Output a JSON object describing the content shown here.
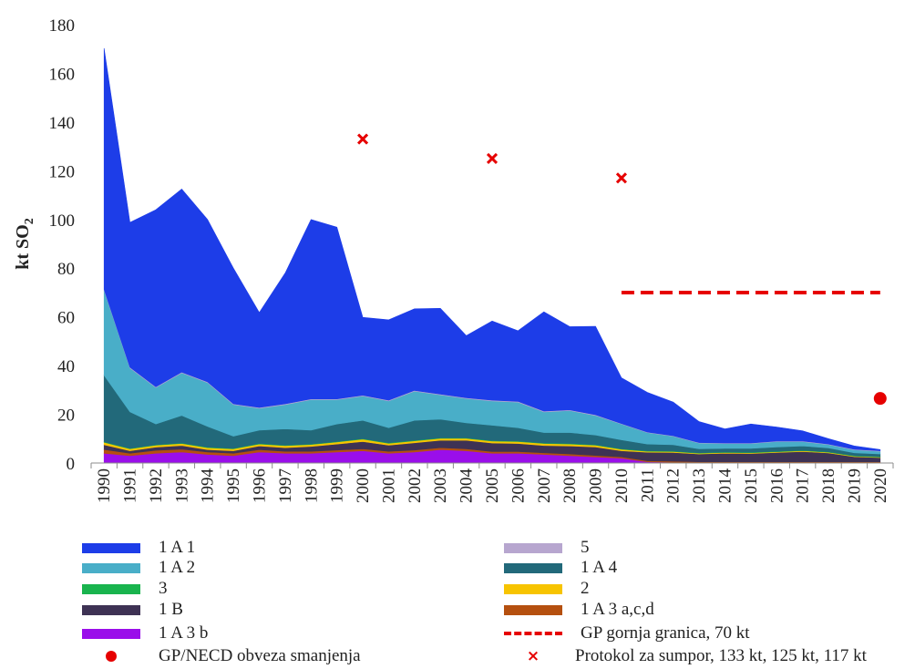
{
  "chart_data": {
    "type": "area",
    "stacked": true,
    "ylabel": "kt SO",
    "ylabel_sub": "2",
    "ylim": [
      0,
      180
    ],
    "yticks": [
      0,
      20,
      40,
      60,
      80,
      100,
      120,
      140,
      160,
      180
    ],
    "x": [
      "1990",
      "1991",
      "1992",
      "1993",
      "1994",
      "1995",
      "1996",
      "1997",
      "1998",
      "1999",
      "2000",
      "2001",
      "2002",
      "2003",
      "2004",
      "2005",
      "2006",
      "2007",
      "2008",
      "2009",
      "2010",
      "2011",
      "2012",
      "2013",
      "2014",
      "2015",
      "2016",
      "2017",
      "2018",
      "2019",
      "2020"
    ],
    "series": [
      {
        "name": "1 A 3 b",
        "color": "#9a0eea",
        "values": [
          4,
          3,
          4,
          4.5,
          3.5,
          3,
          4.5,
          4,
          4,
          4.5,
          5,
          4,
          4.5,
          5.5,
          5,
          4,
          4,
          3.5,
          3,
          2.5,
          2,
          0.5,
          0.3,
          0.2,
          0.2,
          0.2,
          0.2,
          0.2,
          0.2,
          0.2,
          0.2
        ]
      },
      {
        "name": "1 A 3 a,c,d",
        "color": "#b5500f",
        "values": [
          1.5,
          1,
          1.2,
          1.2,
          1,
          1,
          1,
          0.8,
          0.8,
          0.8,
          0.8,
          0.8,
          0.8,
          0.8,
          0.8,
          0.7,
          0.7,
          0.7,
          0.7,
          0.6,
          0.5,
          0.4,
          0.4,
          0.3,
          0.3,
          0.3,
          0.3,
          0.3,
          0.3,
          0.3,
          0.3
        ]
      },
      {
        "name": "1 B",
        "color": "#3e3254",
        "values": [
          2,
          1,
          1.3,
          1.5,
          1,
          1,
          1.5,
          1.5,
          2,
          2.5,
          3,
          2.5,
          3,
          3,
          3.5,
          3.5,
          3.3,
          3,
          3.3,
          3.5,
          2.5,
          3.5,
          3.6,
          3.2,
          3.5,
          3.4,
          3.8,
          4.2,
          3.6,
          2.1,
          1.7
        ]
      },
      {
        "name": "2",
        "color": "#f7c400",
        "values": [
          1,
          0.8,
          0.8,
          0.8,
          0.8,
          0.8,
          0.8,
          0.8,
          0.8,
          0.8,
          1,
          0.8,
          0.8,
          0.8,
          0.8,
          0.8,
          0.8,
          0.8,
          0.8,
          0.7,
          0.6,
          0.4,
          0.4,
          0.3,
          0.3,
          0.3,
          0.3,
          0.3,
          0.3,
          0.2,
          0.2
        ]
      },
      {
        "name": "3",
        "color": "#19b44e",
        "values": [
          0.2,
          0.2,
          0.2,
          0.2,
          0.2,
          0.2,
          0.2,
          0.2,
          0.2,
          0.2,
          0.2,
          0.2,
          0.2,
          0.2,
          0.2,
          0.2,
          0.2,
          0.2,
          0.2,
          0.2,
          0.2,
          0.2,
          0.2,
          0.2,
          0.2,
          0.2,
          0.2,
          0.2,
          0.2,
          0.2,
          0.2
        ]
      },
      {
        "name": "1 A 4",
        "color": "#22697a",
        "values": [
          27.3,
          15,
          8.5,
          11.3,
          8.5,
          5,
          5.5,
          6.7,
          5.7,
          7.2,
          7.5,
          6.2,
          8.2,
          7.7,
          6.2,
          6.3,
          5.5,
          4.3,
          4.5,
          4,
          3.7,
          2.8,
          2.6,
          1.6,
          1.5,
          1.6,
          1.8,
          1.8,
          1.6,
          1.2,
          1.1
        ]
      },
      {
        "name": "1 A 2",
        "color": "#49aec8",
        "values": [
          35,
          18,
          15,
          17.5,
          18,
          13,
          9,
          10,
          12.5,
          10,
          10,
          11,
          12,
          10,
          10,
          10,
          10.5,
          8.5,
          9,
          8,
          6.5,
          4.7,
          3.5,
          2.4,
          2,
          2,
          2.2,
          1.8,
          1.4,
          1.2,
          1.1
        ]
      },
      {
        "name": "5",
        "color": "#b7a6cf",
        "values": [
          0.3,
          0.3,
          0.3,
          0.3,
          0.3,
          0.3,
          0.3,
          0.3,
          0.3,
          0.3,
          0.3,
          0.3,
          0.3,
          0.3,
          0.3,
          0.3,
          0.3,
          0.3,
          0.3,
          0.3,
          0.2,
          0.2,
          0.2,
          0.2,
          0.2,
          0.2,
          0.2,
          0.2,
          0.2,
          0.2,
          0.2
        ]
      },
      {
        "name": "1 A 1",
        "color": "#1d3de8",
        "values": [
          99,
          59.5,
          72.7,
          75.2,
          66.7,
          55.7,
          39,
          53.7,
          73.7,
          70.5,
          32,
          33,
          33.5,
          35.2,
          25.5,
          32.5,
          29,
          40.8,
          34.2,
          36.3,
          18.8,
          16.3,
          13.8,
          8.6,
          5.8,
          7.8,
          5.8,
          4.2,
          2.2,
          1.4,
          0.5
        ]
      }
    ],
    "markers": [
      {
        "name": "GP gornja granica, 70 kt",
        "kind": "dashed-line",
        "color": "#e60000",
        "x_from": "2010",
        "x_to": "2020",
        "y": 70
      },
      {
        "name": "GP/NECD obveza smanjenja",
        "kind": "dot",
        "color": "#e60000",
        "points": [
          {
            "x": "2020",
            "y": 26.5
          }
        ]
      },
      {
        "name": "Protokol za sumpor, 133 kt, 125 kt, 117 kt",
        "kind": "cross",
        "color": "#e60000",
        "points": [
          {
            "x": "2000",
            "y": 133
          },
          {
            "x": "2005",
            "y": 125
          },
          {
            "x": "2010",
            "y": 117
          }
        ]
      }
    ]
  },
  "legend": {
    "items": [
      {
        "label": "1 A 1",
        "color": "#1d3de8"
      },
      {
        "label": "5",
        "color": "#b7a6cf"
      },
      {
        "label": "1 A 2",
        "color": "#49aec8"
      },
      {
        "label": "1 A 4",
        "color": "#22697a"
      },
      {
        "label": "3",
        "color": "#19b44e"
      },
      {
        "label": "2",
        "color": "#f7c400"
      },
      {
        "label": "1 B",
        "color": "#3e3254"
      },
      {
        "label": "1 A 3 a,c,d",
        "color": "#b5500f"
      },
      {
        "label": "1 A 3 b",
        "color": "#9a0eea"
      },
      {
        "label": "GP gornja granica, 70 kt",
        "color": "#e60000"
      },
      {
        "label": "GP/NECD obveza smanjenja",
        "color": "#e60000"
      },
      {
        "label": "Protokol za sumpor, 133 kt, 125 kt, 117 kt",
        "color": "#e60000",
        "icon": "×"
      }
    ]
  }
}
